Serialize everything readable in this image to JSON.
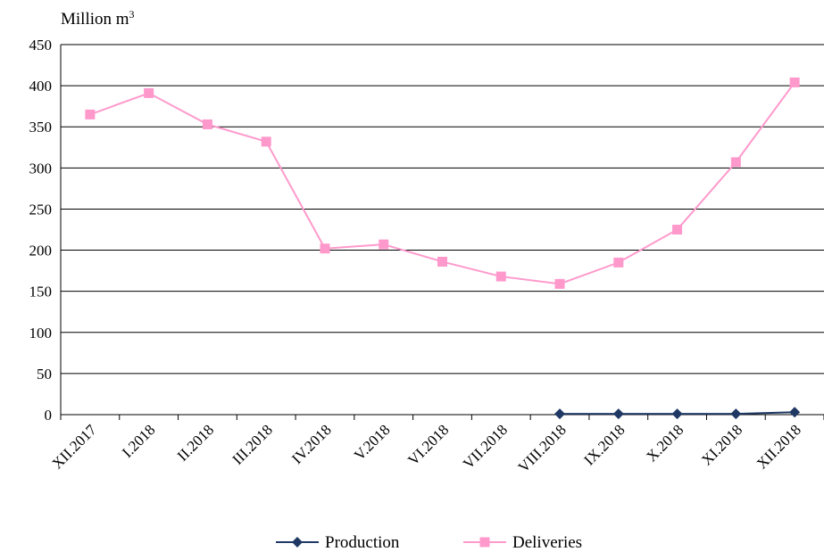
{
  "chart_data": {
    "type": "line",
    "unit_label": "Million m",
    "unit_superscript": "3",
    "categories": [
      "XII.2017",
      "I.2018",
      "II.2018",
      "III.2018",
      "IV.2018",
      "V.2018",
      "VI.2018",
      "VII.2018",
      "VIII.2018",
      "IX.2018",
      "X.2018",
      "XI.2018",
      "XII.2018"
    ],
    "ylim": [
      0,
      450
    ],
    "yticks": [
      "0",
      "50",
      "100",
      "150",
      "200",
      "250",
      "300",
      "350",
      "400",
      "450"
    ],
    "grid": true,
    "legend_position": "bottom",
    "series": [
      {
        "name": "Production",
        "color": "#1f3864",
        "marker": "diamond",
        "values": [
          null,
          null,
          null,
          null,
          null,
          null,
          null,
          null,
          1,
          1,
          1,
          1,
          3
        ]
      },
      {
        "name": "Deliveries",
        "color": "#ff99cc",
        "marker": "square",
        "values": [
          365,
          391,
          353,
          332,
          202,
          207,
          186,
          168,
          159,
          185,
          225,
          307,
          404
        ]
      }
    ]
  }
}
